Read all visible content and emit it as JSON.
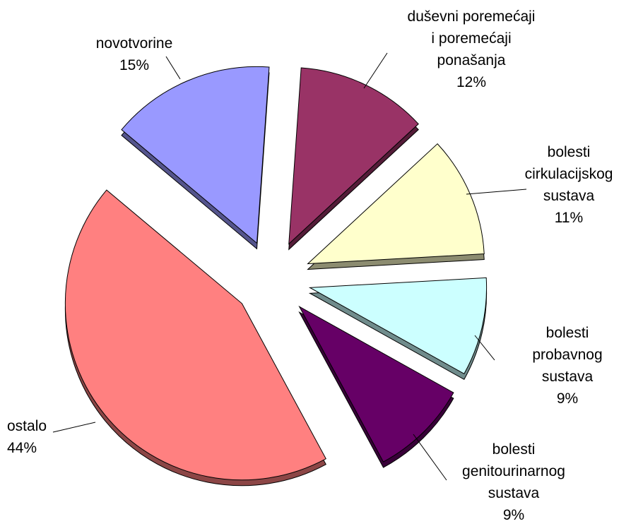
{
  "chart_data": {
    "type": "pie",
    "categories": [
      "duševni poremećaji\ni poremećaji\nponašanja",
      "bolesti\ncirkulacijskog\nsustava",
      "bolesti probavnog\nsustava",
      "bolesti\ngenitourinarnog\nsustava",
      "ostalo",
      "novotvorine"
    ],
    "values": [
      12,
      11,
      9,
      9,
      44,
      15
    ],
    "value_labels": [
      "12%",
      "11%",
      "9%",
      "9%",
      "44%",
      "15%"
    ],
    "colors": [
      "#993366",
      "#ffffcc",
      "#ccffff",
      "#660066",
      "#ff8080",
      "#9999ff"
    ]
  }
}
